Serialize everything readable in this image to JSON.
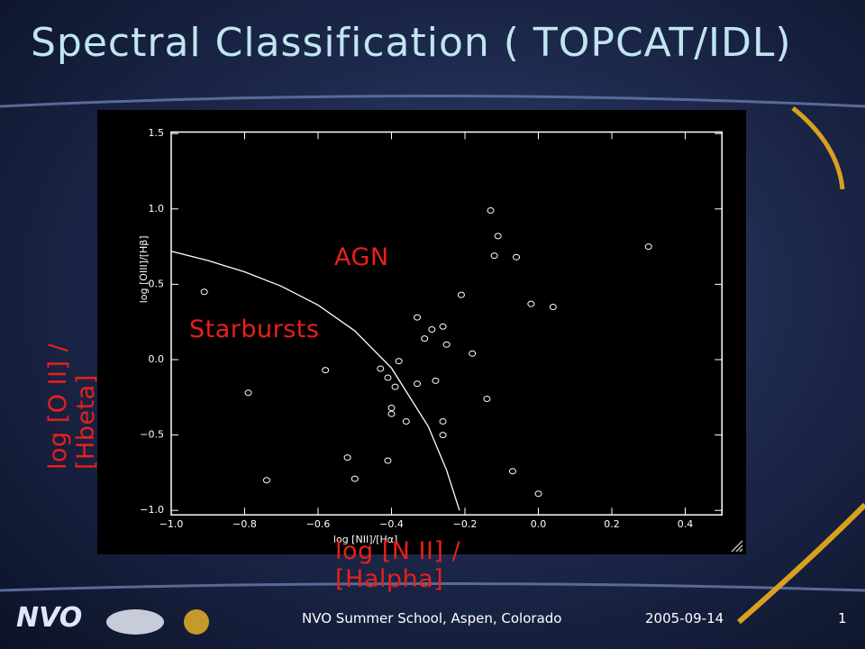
{
  "title": "Spectral Classification ( TOPCAT/IDL)",
  "labels": {
    "agn": "AGN",
    "starbursts": "Starbursts",
    "y_axis": "log [O II] / [Hbeta]",
    "x_axis": "log [N II] / [Halpha]"
  },
  "footer": {
    "logo": "NVO",
    "text": "NVO Summer School, Aspen, Colorado",
    "date": "2005-09-14",
    "page": "1"
  },
  "chart_data": {
    "type": "scatter",
    "x_label": "log [NII]/[Hα]",
    "y_label": "log [OIII]/[Hβ]",
    "xlim": [
      -1.0,
      0.5
    ],
    "ylim": [
      -1.03,
      1.51
    ],
    "xticks": [
      {
        "value": -1.0,
        "label": "−1.0"
      },
      {
        "value": -0.8,
        "label": "−0.8"
      },
      {
        "value": -0.6,
        "label": "−0.6"
      },
      {
        "value": -0.4,
        "label": "−0.4"
      },
      {
        "value": -0.2,
        "label": "−0.2"
      },
      {
        "value": 0,
        "label": "0.0"
      },
      0.2,
      0.4
    ],
    "yticks": [
      {
        "value": -1.0,
        "label": "−1.0"
      },
      {
        "value": -0.5,
        "label": "−0.5"
      },
      {
        "value": 0,
        "label": "0.0"
      },
      0.5,
      {
        "value": 1.0,
        "label": "1.0"
      },
      1.5
    ],
    "series": [
      {
        "color": "#ffffff",
        "marker": "circle",
        "x": [
          -0.91,
          -0.79,
          -0.74,
          -0.58,
          -0.52,
          -0.5,
          -0.43,
          -0.41,
          -0.39,
          -0.4,
          -0.4,
          -0.38,
          -0.41,
          -0.36,
          -0.33,
          -0.33,
          -0.31,
          -0.29,
          -0.28,
          -0.26,
          -0.25,
          -0.26,
          -0.26,
          -0.21,
          -0.18,
          -0.14,
          -0.13,
          -0.11,
          -0.12,
          -0.06,
          -0.02,
          0.04,
          -0.07,
          0.0,
          0.3
        ],
        "values": [
          0.45,
          -0.22,
          -0.8,
          -0.07,
          -0.65,
          -0.79,
          -0.06,
          -0.12,
          -0.18,
          -0.32,
          -0.36,
          -0.01,
          -0.67,
          -0.41,
          0.28,
          -0.16,
          0.14,
          0.2,
          -0.14,
          0.22,
          0.1,
          -0.41,
          -0.5,
          0.43,
          0.04,
          -0.26,
          0.99,
          0.82,
          0.69,
          0.68,
          0.37,
          0.35,
          -0.74,
          -0.89,
          0.75
        ]
      },
      {
        "color": "#ffffff",
        "marker": "line",
        "x": [
          -1.0,
          -0.9,
          -0.8,
          -0.7,
          -0.6,
          -0.5,
          -0.4,
          -0.3,
          -0.25,
          -0.215
        ],
        "values": [
          0.719,
          0.658,
          0.582,
          0.487,
          0.362,
          0.191,
          -0.056,
          -0.443,
          -0.733,
          -1.0
        ]
      }
    ]
  }
}
